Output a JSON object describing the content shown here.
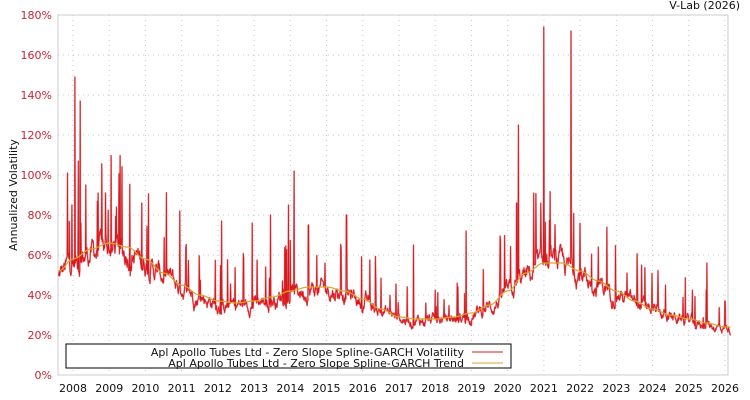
{
  "credit": "V-Lab (2026)",
  "colors": {
    "volatility": "#d7191c",
    "volatility_light": "#e8808a",
    "trend": "#d9a530",
    "grid": "#c8c8c8",
    "frame": "#cccccc",
    "ytick": "#cc2233"
  },
  "legend": {
    "items": [
      {
        "label": "Apl Apollo Tubes Ltd - Zero Slope Spline-GARCH Volatility",
        "color": "#d7191c"
      },
      {
        "label": "Apl Apollo Tubes Ltd - Zero Slope Spline-GARCH Trend",
        "color": "#d9a530"
      }
    ]
  },
  "chart_data": {
    "type": "line",
    "title": "",
    "xlabel": "",
    "ylabel": "Annualized Volatility",
    "ylim": [
      0,
      180
    ],
    "xlim": [
      2007.6,
      2026.15
    ],
    "grid": true,
    "legend_position": "bottom-left inside",
    "y_ticks": [
      "0%",
      "20%",
      "40%",
      "60%",
      "80%",
      "100%",
      "120%",
      "140%",
      "160%",
      "180%"
    ],
    "x_ticks": [
      "2008",
      "2009",
      "2010",
      "2011",
      "2012",
      "2013",
      "2014",
      "2015",
      "2016",
      "2017",
      "2018",
      "2019",
      "2020",
      "2021",
      "2022",
      "2023",
      "2024",
      "2025",
      "2026"
    ],
    "series": [
      {
        "name": "Apl Apollo Tubes Ltd - Zero Slope Spline-GARCH Trend",
        "x": [
          2007.6,
          2008.0,
          2008.5,
          2009.0,
          2009.5,
          2010.0,
          2010.5,
          2011.0,
          2011.5,
          2012.0,
          2012.5,
          2013.0,
          2013.5,
          2014.0,
          2014.5,
          2015.0,
          2015.5,
          2016.0,
          2016.5,
          2017.0,
          2017.5,
          2018.0,
          2018.5,
          2019.0,
          2019.5,
          2020.0,
          2020.5,
          2021.0,
          2021.5,
          2022.0,
          2022.5,
          2023.0,
          2023.5,
          2024.0,
          2024.5,
          2025.0,
          2025.5,
          2026.0,
          2026.15
        ],
        "values": [
          52,
          58,
          63,
          66,
          64,
          58,
          51,
          45,
          40,
          37,
          36,
          37,
          39,
          42,
          44,
          44,
          42,
          38,
          33,
          29,
          28,
          28,
          29,
          31,
          35,
          42,
          51,
          56,
          56,
          52,
          47,
          42,
          37,
          33,
          30,
          28,
          26,
          24,
          24
        ]
      },
      {
        "name": "Apl Apollo Tubes Ltd - Zero Slope Spline-GARCH Volatility",
        "note": "daily series; key spikes listed (year, %)",
        "spikes": [
          [
            2007.85,
            101
          ],
          [
            2008.05,
            149
          ],
          [
            2008.2,
            137
          ],
          [
            2008.15,
            107
          ],
          [
            2008.35,
            95
          ],
          [
            2008.9,
            91
          ],
          [
            2009.2,
            84
          ],
          [
            2009.9,
            86
          ],
          [
            2010.95,
            82
          ],
          [
            2012.1,
            77
          ],
          [
            2012.95,
            76
          ],
          [
            2013.45,
            80
          ],
          [
            2013.95,
            85
          ],
          [
            2014.1,
            102
          ],
          [
            2014.5,
            75
          ],
          [
            2015.55,
            80
          ],
          [
            2017.4,
            65
          ],
          [
            2018.85,
            72
          ],
          [
            2019.8,
            67
          ],
          [
            2020.3,
            125
          ],
          [
            2020.25,
            86
          ],
          [
            2021.0,
            174
          ],
          [
            2021.75,
            172
          ],
          [
            2022.5,
            64
          ],
          [
            2023.7,
            55
          ],
          [
            2025.5,
            56
          ],
          [
            2026.0,
            37
          ]
        ]
      }
    ]
  }
}
